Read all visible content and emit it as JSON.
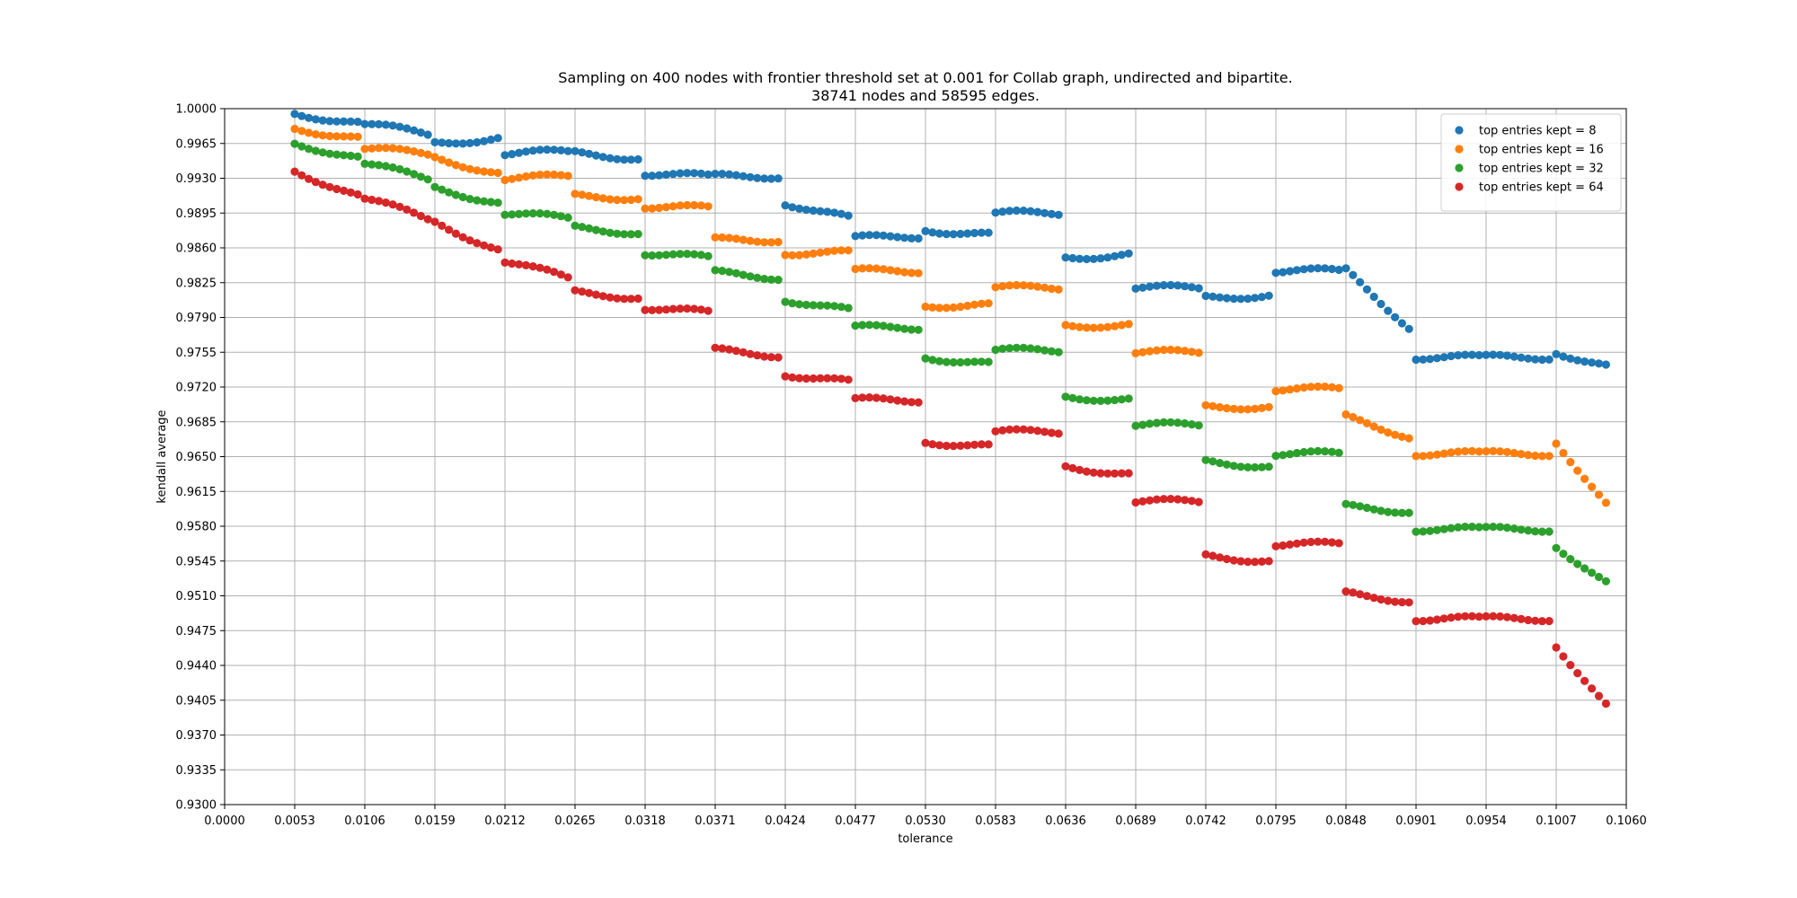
{
  "chart_data": {
    "type": "scatter",
    "title": "Sampling on 400 nodes with frontier threshold set at 0.001 for Collab graph, undirected and bipartite.",
    "subtitle": "38741 nodes and 58595 edges.",
    "xlabel": "tolerance",
    "ylabel": "kendall average",
    "xlim": [
      0.0,
      0.106
    ],
    "ylim": [
      0.93,
      1.0
    ],
    "x_ticks": [
      "0.0000",
      "0.0053",
      "0.0106",
      "0.0159",
      "0.0212",
      "0.0265",
      "0.0318",
      "0.0371",
      "0.0424",
      "0.0477",
      "0.0530",
      "0.0583",
      "0.0636",
      "0.0689",
      "0.0742",
      "0.0795",
      "0.0848",
      "0.0901",
      "0.0954",
      "0.1007",
      "0.1060"
    ],
    "y_ticks": [
      "0.9300",
      "0.9335",
      "0.9370",
      "0.9405",
      "0.9440",
      "0.9475",
      "0.9510",
      "0.9545",
      "0.9580",
      "0.9615",
      "0.9650",
      "0.9685",
      "0.9720",
      "0.9755",
      "0.9790",
      "0.9825",
      "0.9860",
      "0.9895",
      "0.9930",
      "0.9965",
      "1.0000"
    ],
    "grid": true,
    "legend_position": "top-right",
    "x_step": 0.00053,
    "series": [
      {
        "name": "top entries kept = 8",
        "color": "#1f77b4",
        "segments": [
          {
            "x0": 0.0053,
            "x1": 0.0106,
            "y0": 0.9995,
            "y1": 0.9985
          },
          {
            "x0": 0.0106,
            "x1": 0.0159,
            "y0": 0.9985,
            "y1": 0.9975
          },
          {
            "x0": 0.0159,
            "x1": 0.0212,
            "y0": 0.9965,
            "y1": 0.997
          },
          {
            "x0": 0.0212,
            "x1": 0.0265,
            "y0": 0.9955,
            "y1": 0.9957
          },
          {
            "x0": 0.0265,
            "x1": 0.0318,
            "y0": 0.9955,
            "y1": 0.995
          },
          {
            "x0": 0.0318,
            "x1": 0.0371,
            "y0": 0.9935,
            "y1": 0.9932
          },
          {
            "x0": 0.0371,
            "x1": 0.0424,
            "y0": 0.9932,
            "y1": 0.9932
          },
          {
            "x0": 0.0424,
            "x1": 0.0477,
            "y0": 0.9905,
            "y1": 0.989
          },
          {
            "x0": 0.0477,
            "x1": 0.053,
            "y0": 0.987,
            "y1": 0.9872
          },
          {
            "x0": 0.053,
            "x1": 0.0583,
            "y0": 0.9878,
            "y1": 0.9873
          },
          {
            "x0": 0.0583,
            "x1": 0.0636,
            "y0": 0.9895,
            "y1": 0.9895
          },
          {
            "x0": 0.0636,
            "x1": 0.0689,
            "y0": 0.985,
            "y1": 0.9853
          },
          {
            "x0": 0.0689,
            "x1": 0.0742,
            "y0": 0.982,
            "y1": 0.982
          },
          {
            "x0": 0.0742,
            "x1": 0.0795,
            "y0": 0.981,
            "y1": 0.9812
          },
          {
            "x0": 0.0795,
            "x1": 0.0848,
            "y0": 0.9837,
            "y1": 0.9837
          },
          {
            "x0": 0.0848,
            "x1": 0.0901,
            "y0": 0.9837,
            "y1": 0.978
          },
          {
            "x0": 0.0901,
            "x1": 0.0954,
            "y0": 0.975,
            "y1": 0.975
          },
          {
            "x0": 0.0954,
            "x1": 0.1007,
            "y0": 0.975,
            "y1": 0.975
          },
          {
            "x0": 0.1007,
            "x1": 0.105,
            "y0": 0.9755,
            "y1": 0.9741
          }
        ]
      },
      {
        "name": "top entries kept = 16",
        "color": "#ff7f0e",
        "segments": [
          {
            "x0": 0.0053,
            "x1": 0.0106,
            "y0": 0.998,
            "y1": 0.997
          },
          {
            "x0": 0.0106,
            "x1": 0.0159,
            "y0": 0.996,
            "y1": 0.9955
          },
          {
            "x0": 0.0159,
            "x1": 0.0212,
            "y0": 0.995,
            "y1": 0.9935
          },
          {
            "x0": 0.0212,
            "x1": 0.0265,
            "y0": 0.993,
            "y1": 0.9932
          },
          {
            "x0": 0.0265,
            "x1": 0.0318,
            "y0": 0.9912,
            "y1": 0.991
          },
          {
            "x0": 0.0318,
            "x1": 0.0371,
            "y0": 0.9902,
            "y1": 0.99
          },
          {
            "x0": 0.0371,
            "x1": 0.0424,
            "y0": 0.9868,
            "y1": 0.9868
          },
          {
            "x0": 0.0424,
            "x1": 0.0477,
            "y0": 0.9855,
            "y1": 0.9855
          },
          {
            "x0": 0.0477,
            "x1": 0.053,
            "y0": 0.9837,
            "y1": 0.9837
          },
          {
            "x0": 0.053,
            "x1": 0.0583,
            "y0": 0.9802,
            "y1": 0.9802
          },
          {
            "x0": 0.0583,
            "x1": 0.0636,
            "y0": 0.982,
            "y1": 0.982
          },
          {
            "x0": 0.0636,
            "x1": 0.0689,
            "y0": 0.9782,
            "y1": 0.9782
          },
          {
            "x0": 0.0689,
            "x1": 0.0742,
            "y0": 0.9755,
            "y1": 0.9755
          },
          {
            "x0": 0.0742,
            "x1": 0.0795,
            "y0": 0.97,
            "y1": 0.97
          },
          {
            "x0": 0.0795,
            "x1": 0.0848,
            "y0": 0.9718,
            "y1": 0.9718
          },
          {
            "x0": 0.0848,
            "x1": 0.0901,
            "y0": 0.969,
            "y1": 0.967
          },
          {
            "x0": 0.0901,
            "x1": 0.0954,
            "y0": 0.9653,
            "y1": 0.9653
          },
          {
            "x0": 0.0954,
            "x1": 0.1007,
            "y0": 0.9653,
            "y1": 0.9653
          },
          {
            "x0": 0.1007,
            "x1": 0.105,
            "y0": 0.9665,
            "y1": 0.9602
          }
        ]
      },
      {
        "name": "top entries kept = 32",
        "color": "#2ca02c",
        "segments": [
          {
            "x0": 0.0053,
            "x1": 0.0106,
            "y0": 0.9965,
            "y1": 0.995
          },
          {
            "x0": 0.0106,
            "x1": 0.0159,
            "y0": 0.9945,
            "y1": 0.993
          },
          {
            "x0": 0.0159,
            "x1": 0.0212,
            "y0": 0.992,
            "y1": 0.9905
          },
          {
            "x0": 0.0212,
            "x1": 0.0265,
            "y0": 0.9895,
            "y1": 0.989
          },
          {
            "x0": 0.0265,
            "x1": 0.0318,
            "y0": 0.988,
            "y1": 0.9875
          },
          {
            "x0": 0.0318,
            "x1": 0.0371,
            "y0": 0.9855,
            "y1": 0.985
          },
          {
            "x0": 0.0371,
            "x1": 0.0424,
            "y0": 0.9835,
            "y1": 0.983
          },
          {
            "x0": 0.0424,
            "x1": 0.0477,
            "y0": 0.9808,
            "y1": 0.9797
          },
          {
            "x0": 0.0477,
            "x1": 0.053,
            "y0": 0.978,
            "y1": 0.978
          },
          {
            "x0": 0.053,
            "x1": 0.0583,
            "y0": 0.975,
            "y1": 0.9743
          },
          {
            "x0": 0.0583,
            "x1": 0.0636,
            "y0": 0.9757,
            "y1": 0.9757
          },
          {
            "x0": 0.0636,
            "x1": 0.0689,
            "y0": 0.971,
            "y1": 0.9707
          },
          {
            "x0": 0.0689,
            "x1": 0.0742,
            "y0": 0.9682,
            "y1": 0.9682
          },
          {
            "x0": 0.0742,
            "x1": 0.0795,
            "y0": 0.9645,
            "y1": 0.964
          },
          {
            "x0": 0.0795,
            "x1": 0.0848,
            "y0": 0.9653,
            "y1": 0.9653
          },
          {
            "x0": 0.0848,
            "x1": 0.0901,
            "y0": 0.96,
            "y1": 0.9595
          },
          {
            "x0": 0.0901,
            "x1": 0.0954,
            "y0": 0.9577,
            "y1": 0.9577
          },
          {
            "x0": 0.0954,
            "x1": 0.1007,
            "y0": 0.9577,
            "y1": 0.9577
          },
          {
            "x0": 0.1007,
            "x1": 0.105,
            "y0": 0.956,
            "y1": 0.9523
          }
        ]
      },
      {
        "name": "top entries kept = 64",
        "color": "#d62728",
        "segments": [
          {
            "x0": 0.0053,
            "x1": 0.0106,
            "y0": 0.9937,
            "y1": 0.9912
          },
          {
            "x0": 0.0106,
            "x1": 0.0159,
            "y0": 0.991,
            "y1": 0.989
          },
          {
            "x0": 0.0159,
            "x1": 0.0212,
            "y0": 0.9885,
            "y1": 0.9858
          },
          {
            "x0": 0.0212,
            "x1": 0.0265,
            "y0": 0.9847,
            "y1": 0.983
          },
          {
            "x0": 0.0265,
            "x1": 0.0318,
            "y0": 0.9815,
            "y1": 0.981
          },
          {
            "x0": 0.0318,
            "x1": 0.0371,
            "y0": 0.98,
            "y1": 0.9795
          },
          {
            "x0": 0.0371,
            "x1": 0.0424,
            "y0": 0.9757,
            "y1": 0.9752
          },
          {
            "x0": 0.0424,
            "x1": 0.0477,
            "y0": 0.9733,
            "y1": 0.9725
          },
          {
            "x0": 0.0477,
            "x1": 0.053,
            "y0": 0.9707,
            "y1": 0.9707
          },
          {
            "x0": 0.053,
            "x1": 0.0583,
            "y0": 0.9665,
            "y1": 0.966
          },
          {
            "x0": 0.0583,
            "x1": 0.0636,
            "y0": 0.9675,
            "y1": 0.9675
          },
          {
            "x0": 0.0636,
            "x1": 0.0689,
            "y0": 0.964,
            "y1": 0.9632
          },
          {
            "x0": 0.0689,
            "x1": 0.0742,
            "y0": 0.9605,
            "y1": 0.9605
          },
          {
            "x0": 0.0742,
            "x1": 0.0795,
            "y0": 0.955,
            "y1": 0.9545
          },
          {
            "x0": 0.0795,
            "x1": 0.0848,
            "y0": 0.9562,
            "y1": 0.9562
          },
          {
            "x0": 0.0848,
            "x1": 0.0901,
            "y0": 0.9512,
            "y1": 0.9505
          },
          {
            "x0": 0.0901,
            "x1": 0.0954,
            "y0": 0.9487,
            "y1": 0.9487
          },
          {
            "x0": 0.0954,
            "x1": 0.1007,
            "y0": 0.9487,
            "y1": 0.9487
          },
          {
            "x0": 0.1007,
            "x1": 0.105,
            "y0": 0.946,
            "y1": 0.94
          }
        ]
      }
    ]
  }
}
